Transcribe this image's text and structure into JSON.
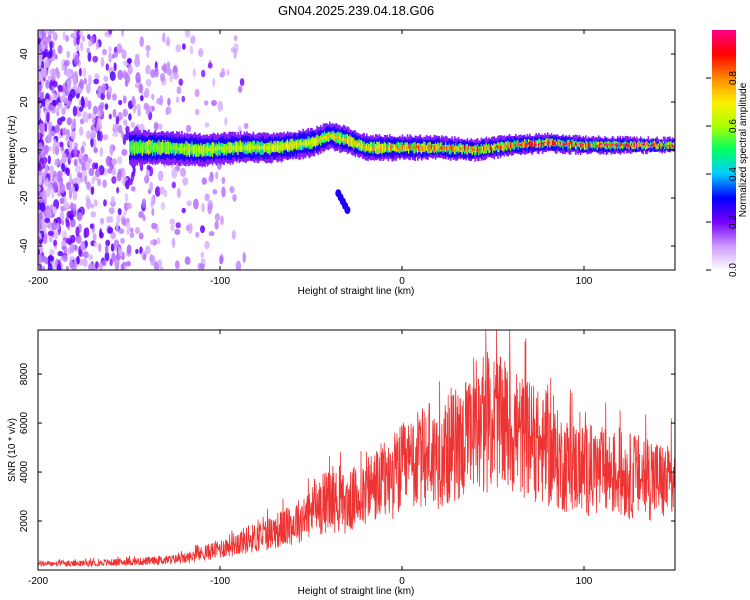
{
  "title": "GN04.2025.239.04.18.G06",
  "chart_data": [
    {
      "type": "heatmap",
      "xlabel": "Height of straight line (km)",
      "ylabel": "Frequency (Hz)",
      "xlim": [
        -200,
        150
      ],
      "ylim": [
        -50,
        50
      ],
      "xticks": [
        -200,
        -100,
        0,
        100
      ],
      "xtick_labels": [
        "-200",
        "-100",
        "0",
        "100"
      ],
      "yticks": [
        -40,
        -20,
        0,
        20,
        40
      ],
      "ytick_labels": [
        "-40",
        "-20",
        "0",
        "20",
        "40"
      ],
      "colorbar": {
        "label": "Normalized spectral amplitude",
        "range": [
          0,
          1
        ],
        "ticks": [
          0.0,
          0.2,
          0.4,
          0.6,
          0.8
        ],
        "tick_labels": [
          "0.0",
          "0.2",
          "0.4",
          "0.6",
          "0.8"
        ],
        "colors": [
          "#ffffff",
          "#cc99ff",
          "#7700ff",
          "#0000ff",
          "#00ccff",
          "#00ff66",
          "#aaff00",
          "#ffee00",
          "#ff8800",
          "#ff0000",
          "#ff0088"
        ]
      },
      "ridge": {
        "x": [
          -150,
          -130,
          -110,
          -90,
          -70,
          -50,
          -40,
          -30,
          -20,
          0,
          20,
          40,
          60,
          80,
          100,
          120,
          150
        ],
        "y": [
          1,
          1,
          0,
          1,
          1,
          3,
          6,
          4,
          1,
          1,
          1,
          0,
          2,
          3,
          2,
          2,
          2
        ]
      },
      "branch": {
        "x": [
          -35,
          -30
        ],
        "y": [
          -18,
          -25
        ]
      }
    },
    {
      "type": "line",
      "xlabel": "Height of straight line (km)",
      "ylabel": "SNR (10 * v/v)",
      "xlim": [
        -200,
        150
      ],
      "ylim": [
        0,
        9800
      ],
      "xticks": [
        -200,
        -100,
        0,
        100
      ],
      "xtick_labels": [
        "-200",
        "-100",
        "0",
        "100"
      ],
      "yticks": [
        2000,
        4000,
        6000,
        8000
      ],
      "ytick_labels": [
        "2000",
        "4000",
        "6000",
        "8000"
      ],
      "color": "#ee3333",
      "series": [
        {
          "x": [
            -200,
            -180,
            -160,
            -140,
            -120,
            -110,
            -100,
            -90,
            -80,
            -70,
            -60,
            -50,
            -40,
            -30,
            -20,
            -10,
            0,
            10,
            20,
            30,
            40,
            50,
            60,
            70,
            80,
            90,
            100,
            110,
            120,
            130,
            140,
            150
          ],
          "y": [
            250,
            250,
            300,
            350,
            450,
            650,
            850,
            1100,
            1300,
            1550,
            1800,
            2300,
            2800,
            2600,
            3200,
            3500,
            4000,
            4400,
            4500,
            5000,
            5200,
            6000,
            5500,
            5200,
            4600,
            4200,
            4000,
            3900,
            3800,
            3700,
            3600,
            3300
          ],
          "peaks": {
            "x": [
              -79,
              -58,
              -48,
              -38,
              -20,
              -10,
              3,
              15,
              27,
              35,
              42,
              47,
              52,
              58,
              63,
              70,
              79,
              91,
              100,
              115,
              137,
              148
            ],
            "y": [
              2050,
              2650,
              3700,
              4250,
              4050,
              4750,
              5200,
              6800,
              7450,
              7650,
              7800,
              8900,
              9800,
              7400,
              8000,
              7650,
              7350,
              5800,
              5600,
              4800,
              5150,
              6200
            ]
          }
        }
      ]
    }
  ]
}
